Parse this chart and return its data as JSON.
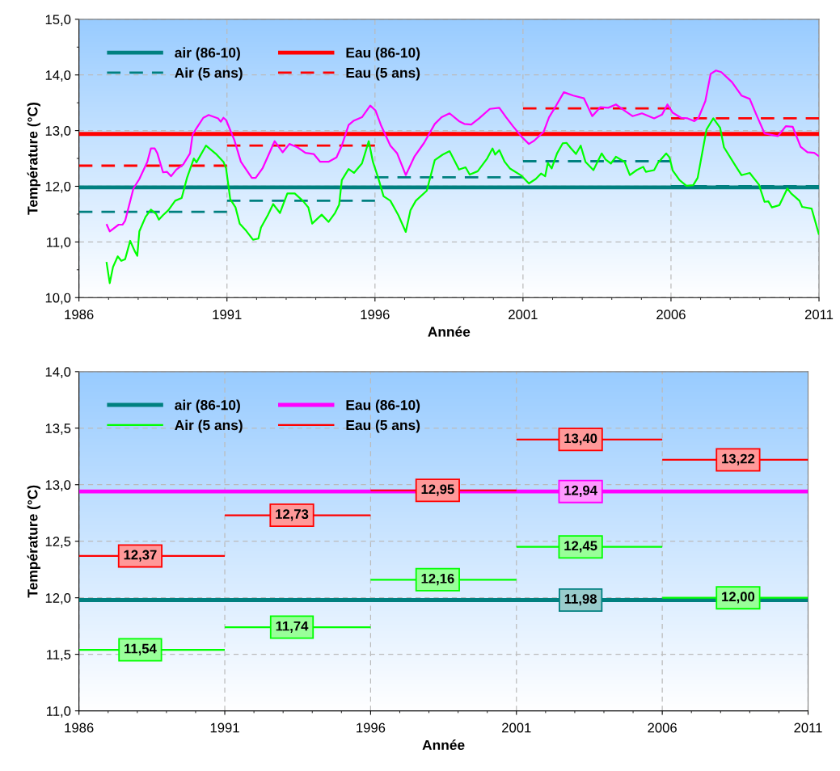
{
  "chart_data": [
    {
      "type": "line",
      "xlabel": "Année",
      "ylabel": "Température (°C)",
      "legend": "top left",
      "grid": true,
      "marker": "none",
      "xlim": [
        1986,
        2011
      ],
      "ylim": [
        10,
        15
      ],
      "xticks": [
        1986,
        {
          "value": 1987,
          "label": null
        },
        {
          "value": 1988,
          "label": null
        },
        {
          "value": 1989,
          "label": null
        },
        {
          "value": 1990,
          "label": null
        },
        1991,
        {
          "value": 1992,
          "label": null
        },
        {
          "value": 1993,
          "label": null
        },
        {
          "value": 1994,
          "label": null
        },
        {
          "value": 1995,
          "label": null
        },
        1996,
        {
          "value": 1997,
          "label": null
        },
        {
          "value": 1998,
          "label": null
        },
        {
          "value": 1999,
          "label": null
        },
        {
          "value": 2000,
          "label": null
        },
        2001,
        {
          "value": 2002,
          "label": null
        },
        {
          "value": 2003,
          "label": null
        },
        {
          "value": 2004,
          "label": null
        },
        {
          "value": 2005,
          "label": null
        },
        2006,
        {
          "value": 2007,
          "label": null
        },
        {
          "value": 2008,
          "label": null
        },
        {
          "value": 2009,
          "label": null
        },
        {
          "value": 2010,
          "label": null
        },
        2011
      ],
      "yticks": [
        {
          "value": 10,
          "label": "10,0"
        },
        {
          "value": 10.5,
          "label": null
        },
        {
          "value": 11,
          "label": "11,0"
        },
        {
          "value": 11.5,
          "label": null
        },
        {
          "value": 12,
          "label": "12,0"
        },
        {
          "value": 12.5,
          "label": null
        },
        {
          "value": 13,
          "label": "13,0"
        },
        {
          "value": 13.5,
          "label": null
        },
        {
          "value": 14,
          "label": "14,0"
        },
        {
          "value": 14.5,
          "label": null
        },
        {
          "value": 15,
          "label": "15,0"
        }
      ],
      "series": [
        {
          "name": "air (86-10)",
          "color": "#008080",
          "line_style": "solid",
          "x": [
            1986,
            2011
          ],
          "values": [
            11.98,
            11.98
          ]
        },
        {
          "name": "Eau (86-10)",
          "color": "#ff0000",
          "line_style": "solid",
          "x": [
            1986,
            2011
          ],
          "values": [
            12.94,
            12.94
          ]
        },
        {
          "name": "Air (5 ans)",
          "color": "#008080",
          "line_style": "dashed",
          "x": [
            1986,
            1991,
            null,
            1991,
            1996,
            null,
            1996,
            2001,
            null,
            2001,
            2006,
            null,
            2006,
            2011
          ],
          "values": [
            11.54,
            11.54,
            null,
            11.74,
            11.74,
            null,
            12.16,
            12.16,
            null,
            12.45,
            12.45,
            null,
            12.0,
            12.0
          ]
        },
        {
          "name": "Eau (5 ans)",
          "color": "#ff0000",
          "line_style": "dashed",
          "x": [
            1986,
            1991,
            null,
            1991,
            1996,
            null,
            1996,
            2001,
            null,
            2001,
            2006,
            null,
            2006,
            2011
          ],
          "values": [
            12.37,
            12.37,
            null,
            12.73,
            12.73,
            null,
            12.95,
            12.95,
            null,
            13.4,
            13.4,
            null,
            13.22,
            13.22
          ]
        },
        {
          "color": "#ff00ff",
          "line_style": "solid",
          "x": [
            1986.93,
            1987.04,
            1987.34,
            1987.47,
            1987.56,
            1987.7,
            1987.84,
            1988.04,
            1988.31,
            1988.43,
            1988.56,
            1988.65,
            1988.84,
            1988.97,
            1989.11,
            1989.29,
            1989.52,
            1989.75,
            1989.84,
            1989.98,
            1990.2,
            1990.38,
            1990.7,
            1990.79,
            1990.88,
            1990.97,
            1991.25,
            1991.47,
            1991.84,
            1991.97,
            1992.2,
            1992.61,
            1992.88,
            1993.11,
            1993.38,
            1993.65,
            1993.93,
            1994.15,
            1994.43,
            1994.7,
            1994.88,
            1995.11,
            1995.29,
            1995.56,
            1995.84,
            1996.02,
            1996.2,
            1996.52,
            1996.75,
            1997.04,
            1997.34,
            1997.66,
            1998.02,
            1998.25,
            1998.52,
            1998.84,
            1999.02,
            1999.25,
            1999.52,
            1999.88,
            2000.2,
            2000.43,
            2000.66,
            2000.97,
            2001.2,
            2001.38,
            2001.7,
            2001.88,
            2002.11,
            2002.38,
            2002.7,
            2003.06,
            2003.34,
            2003.61,
            2003.88,
            2004.14,
            2004.43,
            2004.7,
            2005.02,
            2005.43,
            2005.7,
            2005.88,
            2006.06,
            2006.34,
            2006.56,
            2006.79,
            2006.93,
            2007.16,
            2007.34,
            2007.52,
            2007.7,
            2008.06,
            2008.38,
            2008.66,
            2008.88,
            2009.16,
            2009.61,
            2009.88,
            2010.11,
            2010.38,
            2010.61,
            2010.84,
            2011.0
          ],
          "values": [
            11.32,
            11.19,
            11.31,
            11.31,
            11.38,
            11.67,
            11.96,
            12.13,
            12.44,
            12.68,
            12.68,
            12.59,
            12.25,
            12.26,
            12.18,
            12.3,
            12.39,
            12.59,
            12.93,
            13.05,
            13.23,
            13.28,
            13.22,
            13.16,
            13.23,
            13.19,
            12.83,
            12.44,
            12.15,
            12.15,
            12.32,
            12.81,
            12.61,
            12.76,
            12.7,
            12.6,
            12.58,
            12.44,
            12.44,
            12.52,
            12.73,
            13.1,
            13.18,
            13.24,
            13.45,
            13.36,
            13.1,
            12.73,
            12.59,
            12.2,
            12.54,
            12.78,
            13.12,
            13.24,
            13.31,
            13.17,
            13.12,
            13.11,
            13.22,
            13.39,
            13.41,
            13.24,
            13.08,
            12.88,
            12.76,
            12.82,
            12.98,
            13.24,
            13.44,
            13.69,
            13.63,
            13.58,
            13.26,
            13.42,
            13.41,
            13.47,
            13.36,
            13.26,
            13.31,
            13.22,
            13.29,
            13.47,
            13.32,
            13.23,
            13.22,
            13.17,
            13.23,
            13.53,
            14.02,
            14.08,
            14.05,
            13.87,
            13.63,
            13.57,
            13.29,
            12.95,
            12.9,
            13.08,
            13.07,
            12.71,
            12.61,
            12.6,
            12.54
          ]
        },
        {
          "color": "#00ff00",
          "line_style": "solid",
          "x": [
            1986.93,
            1987.04,
            1987.15,
            1987.31,
            1987.43,
            1987.56,
            1987.73,
            1987.88,
            1987.97,
            1988.04,
            1988.25,
            1988.43,
            1988.61,
            1988.7,
            1988.84,
            1989.02,
            1989.25,
            1989.47,
            1989.65,
            1989.88,
            1989.97,
            1990.29,
            1990.65,
            1990.88,
            1990.97,
            1991.11,
            1991.29,
            1991.43,
            1991.65,
            1991.88,
            1992.06,
            1992.15,
            1992.38,
            1992.56,
            1992.79,
            1993.04,
            1993.29,
            1993.56,
            1993.75,
            1993.88,
            1994.2,
            1994.43,
            1994.65,
            1994.79,
            1994.88,
            1995.11,
            1995.29,
            1995.56,
            1995.79,
            1995.93,
            1996.11,
            1996.29,
            1996.52,
            1996.79,
            1997.04,
            1997.2,
            1997.38,
            1997.75,
            1998.02,
            1998.29,
            1998.52,
            1998.84,
            1999.06,
            1999.2,
            1999.47,
            1999.79,
            1999.97,
            2000.06,
            2000.2,
            2000.38,
            2000.56,
            2000.95,
            2001.2,
            2001.43,
            2001.61,
            2001.75,
            2001.84,
            2001.97,
            2002.15,
            2002.34,
            2002.47,
            2002.61,
            2002.79,
            2002.95,
            2003.11,
            2003.38,
            2003.66,
            2003.79,
            2003.97,
            2004.14,
            2004.43,
            2004.61,
            2004.84,
            2005.06,
            2005.15,
            2005.43,
            2005.56,
            2005.84,
            2005.95,
            2006.06,
            2006.29,
            2006.52,
            2006.75,
            2006.9,
            2007.2,
            2007.43,
            2007.66,
            2007.79,
            2008.2,
            2008.38,
            2008.66,
            2008.97,
            2009.16,
            2009.29,
            2009.41,
            2009.66,
            2009.93,
            2010.06,
            2010.34,
            2010.43,
            2010.75,
            2011.0
          ],
          "values": [
            10.64,
            10.26,
            10.55,
            10.74,
            10.66,
            10.69,
            11.02,
            10.84,
            10.75,
            11.19,
            11.45,
            11.58,
            11.5,
            11.4,
            11.48,
            11.57,
            11.74,
            11.79,
            12.15,
            12.5,
            12.43,
            12.73,
            12.57,
            12.44,
            12.32,
            11.77,
            11.62,
            11.33,
            11.2,
            11.04,
            11.06,
            11.26,
            11.48,
            11.68,
            11.52,
            11.87,
            11.87,
            11.74,
            11.62,
            11.33,
            11.49,
            11.36,
            11.52,
            11.67,
            12.11,
            12.31,
            12.24,
            12.41,
            12.81,
            12.44,
            12.15,
            11.82,
            11.74,
            11.48,
            11.18,
            11.57,
            11.74,
            11.92,
            12.47,
            12.57,
            12.63,
            12.3,
            12.34,
            12.21,
            12.27,
            12.5,
            12.68,
            12.57,
            12.65,
            12.44,
            12.32,
            12.19,
            12.05,
            12.13,
            12.23,
            12.18,
            12.42,
            12.32,
            12.59,
            12.77,
            12.78,
            12.69,
            12.58,
            12.73,
            12.44,
            12.29,
            12.59,
            12.48,
            12.41,
            12.53,
            12.44,
            12.2,
            12.29,
            12.35,
            12.26,
            12.29,
            12.42,
            12.59,
            12.52,
            12.28,
            12.11,
            12.01,
            12.02,
            12.15,
            13.02,
            13.22,
            13.05,
            12.7,
            12.35,
            12.2,
            12.24,
            12.03,
            11.72,
            11.73,
            11.62,
            11.66,
            11.96,
            11.87,
            11.74,
            11.63,
            11.6,
            11.13
          ]
        }
      ]
    },
    {
      "type": "line",
      "xlabel": "Année",
      "ylabel": "Température (°C)",
      "legend": "top left",
      "grid": true,
      "marker": "none",
      "xlim": [
        1986,
        2011
      ],
      "ylim": [
        11,
        14
      ],
      "xticks": [
        1986,
        {
          "value": 1987,
          "label": null
        },
        {
          "value": 1988,
          "label": null
        },
        {
          "value": 1989,
          "label": null
        },
        {
          "value": 1990,
          "label": null
        },
        1991,
        {
          "value": 1992,
          "label": null
        },
        {
          "value": 1993,
          "label": null
        },
        {
          "value": 1994,
          "label": null
        },
        {
          "value": 1995,
          "label": null
        },
        1996,
        {
          "value": 1997,
          "label": null
        },
        {
          "value": 1998,
          "label": null
        },
        {
          "value": 1999,
          "label": null
        },
        {
          "value": 2000,
          "label": null
        },
        2001,
        {
          "value": 2002,
          "label": null
        },
        {
          "value": 2003,
          "label": null
        },
        {
          "value": 2004,
          "label": null
        },
        {
          "value": 2005,
          "label": null
        },
        2006,
        {
          "value": 2007,
          "label": null
        },
        {
          "value": 2008,
          "label": null
        },
        {
          "value": 2009,
          "label": null
        },
        {
          "value": 2010,
          "label": null
        },
        2011
      ],
      "yticks": [
        {
          "value": 11,
          "label": "11,0"
        },
        {
          "value": 11.5,
          "label": "11,5"
        },
        {
          "value": 12,
          "label": "12,0"
        },
        {
          "value": 12.5,
          "label": "12,5"
        },
        {
          "value": 13,
          "label": "13,0"
        },
        {
          "value": 13.5,
          "label": "13,5"
        },
        {
          "value": 14,
          "label": "14,0"
        }
      ],
      "series": [
        {
          "name": "air (86-10)",
          "color": "#008080",
          "line_style": "solid",
          "x": [
            1986,
            2011
          ],
          "values": [
            11.98,
            11.98
          ]
        },
        {
          "name": "Eau (86-10)",
          "color": "#ff00ff",
          "line_style": "solid",
          "x": [
            1986,
            2011
          ],
          "values": [
            12.94,
            12.94
          ]
        },
        {
          "name": "Air (5 ans)",
          "color": "#00ff00",
          "line_style": "solid",
          "x": [
            1986,
            1991,
            null,
            1991,
            1996,
            null,
            1996,
            2001,
            null,
            2001,
            2006,
            null,
            2006,
            2011
          ],
          "values": [
            11.54,
            11.54,
            null,
            11.74,
            11.74,
            null,
            12.16,
            12.16,
            null,
            12.45,
            12.45,
            null,
            12.0,
            12.0
          ]
        },
        {
          "name": "Eau (5 ans)",
          "color": "#ff0000",
          "line_style": "solid",
          "x": [
            1986,
            1991,
            null,
            1991,
            1996,
            null,
            1996,
            2001,
            null,
            2001,
            2006,
            null,
            2006,
            2011
          ],
          "values": [
            12.37,
            12.37,
            null,
            12.73,
            12.73,
            null,
            12.95,
            12.95,
            null,
            13.4,
            13.4,
            null,
            13.22,
            13.22
          ]
        }
      ],
      "annotations": [
        {
          "text": "11,54",
          "x": 1988.1,
          "y": 11.54
        },
        {
          "text": "11,74",
          "x": 1993.3,
          "y": 11.74
        },
        {
          "text": "12,16",
          "x": 1998.3,
          "y": 12.16
        },
        {
          "text": "12,45",
          "x": 2003.2,
          "y": 12.45
        },
        {
          "text": "12,00",
          "x": 2008.6,
          "y": 12.0
        },
        {
          "text": "12,37",
          "x": 1988.1,
          "y": 12.37
        },
        {
          "text": "12,73",
          "x": 1993.3,
          "y": 12.73
        },
        {
          "text": "12,95",
          "x": 1998.3,
          "y": 12.95
        },
        {
          "text": "13,40",
          "x": 2003.2,
          "y": 13.4
        },
        {
          "text": "13,22",
          "x": 2008.6,
          "y": 13.22
        },
        {
          "text": "11,98",
          "x": 2003.2,
          "y": 11.98
        },
        {
          "text": "12,94",
          "x": 2003.2,
          "y": 12.94
        }
      ]
    }
  ]
}
